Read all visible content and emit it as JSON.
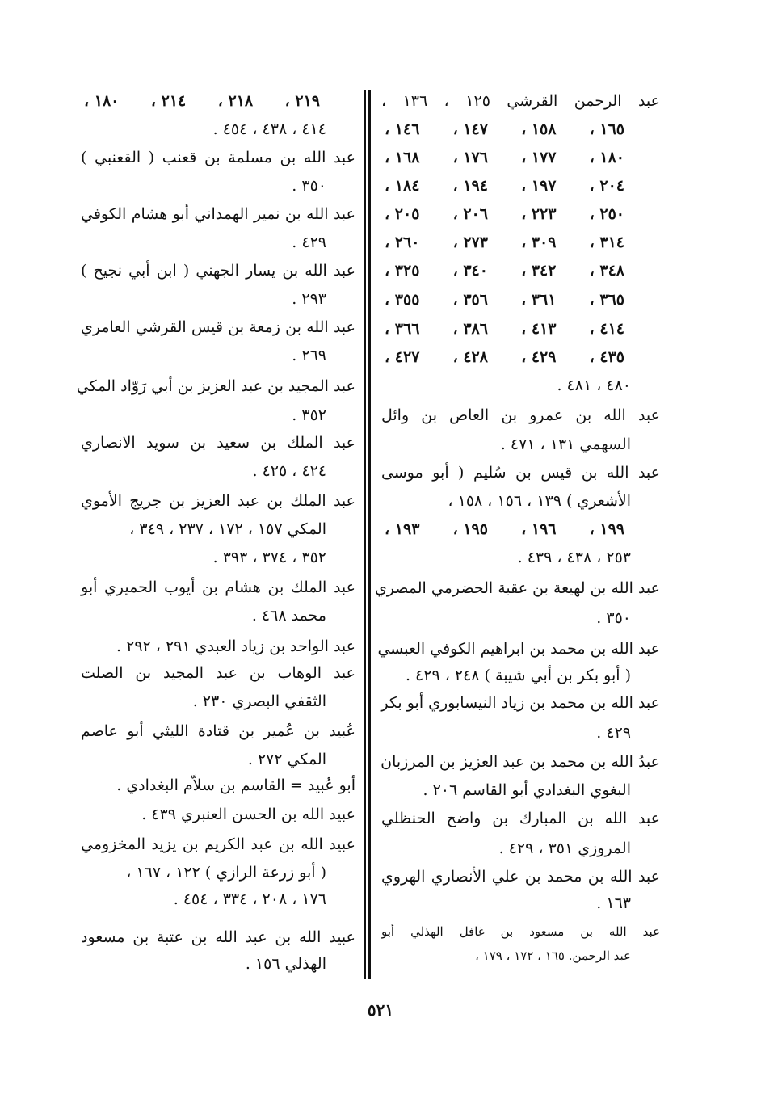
{
  "page_number": "٥٢١",
  "right_column": [
    "عبد الرحمن القرشي ١٢٥ ، ١٣٦ ،",
    [
      "١٤٦ ،",
      "١٤٧ ،",
      "١٥٨ ،",
      "١٦٥ ،"
    ],
    [
      "١٦٨ ،",
      "١٧٦ ،",
      "١٧٧ ،",
      "١٨٠ ،"
    ],
    [
      "١٨٤ ،",
      "١٩٤ ،",
      "١٩٧ ،",
      "٢٠٤ ،"
    ],
    [
      "٢٠٥ ،",
      "٢٠٦ ،",
      "٢٢٣ ،",
      "٢٥٠ ،"
    ],
    [
      "٢٦٠ ،",
      "٢٧٣ ،",
      "٣٠٩ ،",
      "٣١٤ ،"
    ],
    [
      "٣٢٥ ،",
      "٣٤٠ ،",
      "٣٤٢ ،",
      "٣٤٨ ،"
    ],
    [
      "٣٥٥ ،",
      "٣٥٦ ،",
      "٣٦١ ،",
      "٣٦٥ ،"
    ],
    [
      "٣٦٦ ،",
      "٣٨٦ ،",
      "٤١٣ ،",
      "٤١٤ ،"
    ],
    [
      "٤٢٧ ،",
      "٤٢٨ ،",
      "٤٢٩ ،",
      "٤٣٥ ،"
    ],
    "٤٨٠ ، ٤٨١ .",
    "عبد الله بن عمرو بن العاص بن وائل",
    "السهمي ١٣١ ، ٤٧١ .",
    "عبد الله بن قيس بن سُليم ( أبو موسى",
    "الأشعري ) ١٣٩ ، ١٥٦ ، ١٥٨ ،",
    [
      "١٩٣ ،",
      "١٩٥ ،",
      "١٩٦ ،",
      "١٩٩ ،"
    ],
    "٢٥٣ ، ٤٣٨ ، ٤٣٩ .",
    "عبد الله بن لهيعة بن عقبة الحضرمي المصري",
    "٣٥٠ .",
    "عبد الله بن محمد بن ابراهيم الكوفي العبسي",
    "( أبو بكر بن أبي شيبة ) ٢٤٨ ، ٤٢٩ .",
    "عبد الله بن محمد بن زياد النيسابوري أبو بكر",
    "٤٢٩ .",
    "عبدُ الله بن محمد بن عبد العزيز بن المرزبان",
    "البغوي البغدادي أبو القاسم ٢٠٦ .",
    "عبد الله بن المبارك بن واضح الحنظلي",
    "المروزي ٣٥١ ، ٤٢٩ .",
    "عبد الله بن محمد بن علي الأنصاري الهروي",
    "١٦٣ .",
    "عبد الله بن مسعود بن غافل الهذلي أبو",
    "عبد الرحمن. ١٦٥ ، ١٧٢ ، ١٧٩ ،"
  ],
  "left_column": [
    [
      "١٨٠ ،",
      "٢١٤ ،",
      "٢١٨ ،",
      "٢١٩ ،"
    ],
    "٤١٤ ، ٤٣٨ ، ٤٥٤ .",
    "عبد الله بن مسلمة بن قعنب ( القعنبي )",
    "٣٥٠ .",
    "عبد الله بن نمير الهمداني أبو هشام الكوفي",
    "٤٢٩ .",
    "عبد الله بن يسار الجهني ( ابن أبي نجيح )",
    "٢٩٣ .",
    "عبد الله بن زمعة بن قيس القرشي العامري",
    "٢٦٩ .",
    "عبد المجيد بن عبد العزيز بن أبي رَوّاد المكي",
    "٣٥٢ .",
    "عبد الملك بن سعيد بن سويد الانصاري",
    "٤٢٤ ، ٤٢٥ .",
    "عبد الملك بن عبد العزيز بن جريج الأموي",
    "المكي ١٥٧ ، ١٧٢ ، ٢٣٧ ، ٣٤٩ ،",
    "٣٥٢ ، ٣٧٤ ، ٣٩٣ .",
    "عبد الملك بن هشام بن أيوب الحميري أبو",
    "محمد ٤٦٨ .",
    "عبد الواحد بن زياد العبدي ٢٩١ ، ٢٩٢ .",
    "عبد الوهاب بن عبد المجيد بن الصلت",
    "الثقفي البصري ٢٣٠ .",
    "عُبيد بن عُمير بن قتادة الليثي أبو عاصم",
    "المكي ٢٧٢ .",
    "أبو عُبيد = القاسم بن سلاّم البغدادي .",
    "عبيد الله بن الحسن العنبري ٤٣٩ .",
    "عبيد الله بن عبد الكريم بن يزيد المخزومي",
    "( أبو زرعة الرازي ) ١٢٢ ، ١٦٧ ،",
    "١٧٦ ، ٢٠٨ ، ٣٣٤ ، ٤٥٤ .",
    "عبيد الله بن عبد الله بن عتبة بن مسعود",
    "الهذلي ١٥٦ ."
  ]
}
